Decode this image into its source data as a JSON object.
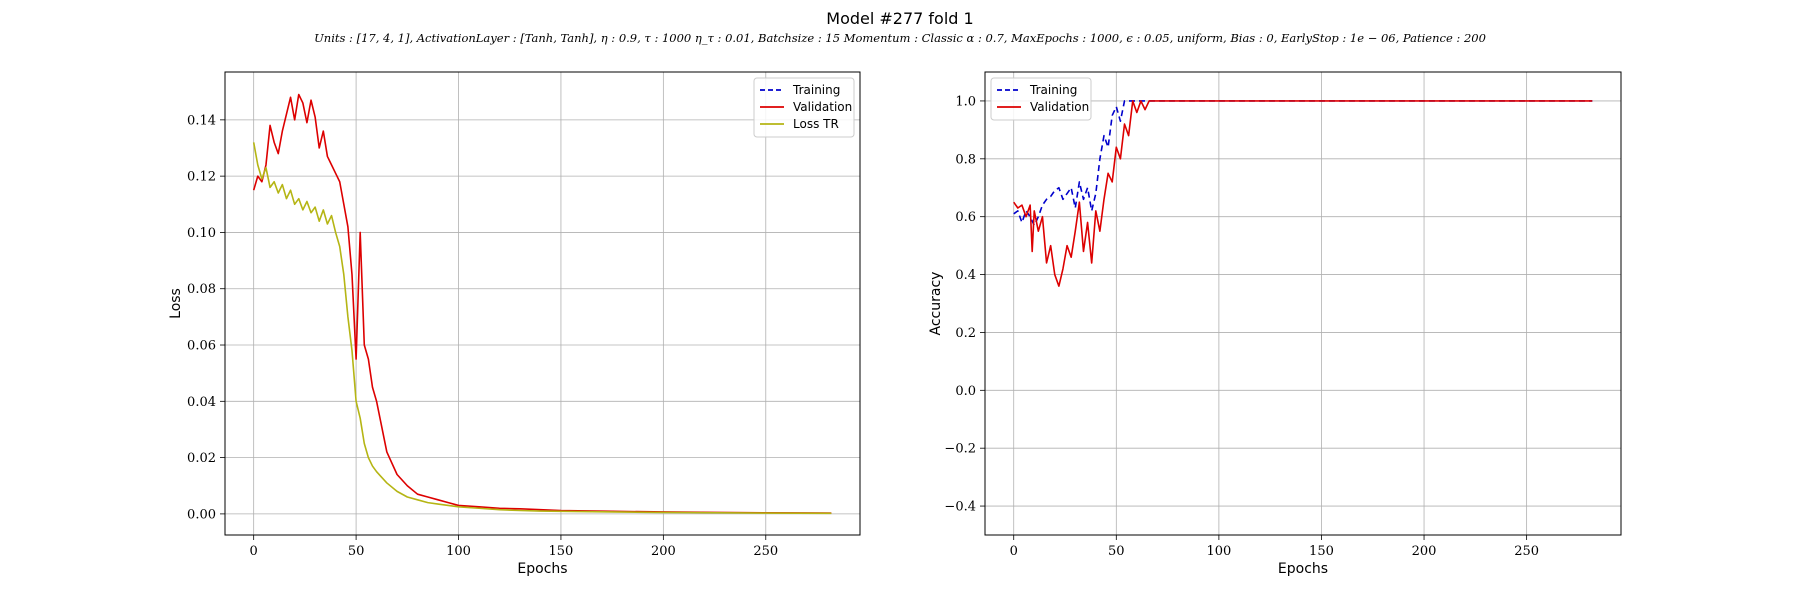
{
  "figure": {
    "title": "Model #277 fold 1",
    "subtitle": "Units : [17, 4, 1], ActivationLayer : [Tanh, Tanh], η : 0.9, τ : 1000 η_τ : 0.01, Batchsize : 15 Momentum : Classic α : 0.7, MaxEpochs : 1000, ϵ : 0.05, uniform, Bias : 0, EarlyStop : 1e − 06, Patience : 200"
  },
  "chart_data": [
    {
      "type": "line",
      "xlabel": "Epochs",
      "ylabel": "Loss",
      "xlim": [
        -14,
        296
      ],
      "ylim": [
        -0.0075,
        0.157
      ],
      "xticks": [
        0,
        50,
        100,
        150,
        200,
        250
      ],
      "yticks": [
        0.0,
        0.02,
        0.04,
        0.06,
        0.08,
        0.1,
        0.12,
        0.14
      ],
      "ytick_labels": [
        "0.00",
        "0.02",
        "0.04",
        "0.06",
        "0.08",
        "0.10",
        "0.12",
        "0.14"
      ],
      "grid": true,
      "legend_position": "top-right",
      "series": [
        {
          "name": "Training",
          "color": "#0000cc",
          "dash": "6,4",
          "x": [],
          "y": []
        },
        {
          "name": "Validation",
          "color": "#dd0000",
          "dash": "",
          "x": [
            0,
            2,
            4,
            6,
            8,
            10,
            12,
            14,
            16,
            18,
            20,
            22,
            24,
            26,
            28,
            30,
            32,
            34,
            36,
            38,
            40,
            42,
            44,
            46,
            48,
            50,
            52,
            54,
            56,
            58,
            60,
            65,
            70,
            75,
            80,
            85,
            90,
            95,
            100,
            110,
            120,
            130,
            140,
            150,
            175,
            200,
            225,
            250,
            282
          ],
          "y": [
            0.115,
            0.12,
            0.118,
            0.124,
            0.138,
            0.132,
            0.128,
            0.136,
            0.142,
            0.148,
            0.14,
            0.149,
            0.146,
            0.139,
            0.147,
            0.141,
            0.13,
            0.136,
            0.127,
            0.124,
            0.121,
            0.118,
            0.11,
            0.102,
            0.085,
            0.055,
            0.1,
            0.06,
            0.055,
            0.045,
            0.04,
            0.022,
            0.014,
            0.01,
            0.007,
            0.006,
            0.005,
            0.004,
            0.003,
            0.0025,
            0.002,
            0.0018,
            0.0015,
            0.0012,
            0.0009,
            0.0007,
            0.0005,
            0.0004,
            0.0003
          ]
        },
        {
          "name": "Loss TR",
          "color": "#b5b514",
          "dash": "",
          "x": [
            0,
            2,
            4,
            6,
            8,
            10,
            12,
            14,
            16,
            18,
            20,
            22,
            24,
            26,
            28,
            30,
            32,
            34,
            36,
            38,
            40,
            42,
            44,
            46,
            48,
            50,
            52,
            54,
            56,
            58,
            60,
            65,
            70,
            75,
            80,
            85,
            90,
            95,
            100,
            110,
            120,
            130,
            140,
            150,
            175,
            200,
            225,
            250,
            282
          ],
          "y": [
            0.132,
            0.124,
            0.119,
            0.123,
            0.116,
            0.118,
            0.114,
            0.117,
            0.112,
            0.115,
            0.11,
            0.112,
            0.108,
            0.111,
            0.107,
            0.109,
            0.104,
            0.108,
            0.103,
            0.106,
            0.1,
            0.095,
            0.085,
            0.07,
            0.058,
            0.04,
            0.034,
            0.025,
            0.02,
            0.017,
            0.015,
            0.011,
            0.008,
            0.006,
            0.005,
            0.004,
            0.0035,
            0.003,
            0.0025,
            0.002,
            0.0015,
            0.0012,
            0.001,
            0.0009,
            0.0007,
            0.0005,
            0.0004,
            0.0003,
            0.0002
          ]
        }
      ]
    },
    {
      "type": "line",
      "xlabel": "Epochs",
      "ylabel": "Accuracy",
      "xlim": [
        -14,
        296
      ],
      "ylim": [
        -0.5,
        1.1
      ],
      "xticks": [
        0,
        50,
        100,
        150,
        200,
        250
      ],
      "yticks": [
        -0.4,
        -0.2,
        0.0,
        0.2,
        0.4,
        0.6,
        0.8,
        1.0
      ],
      "ytick_labels": [
        "−0.4",
        "−0.2",
        "0.0",
        "0.2",
        "0.4",
        "0.6",
        "0.8",
        "1.0"
      ],
      "grid": true,
      "legend_position": "top-left",
      "series": [
        {
          "name": "Training",
          "color": "#0000cc",
          "dash": "6,4",
          "x": [
            0,
            2,
            4,
            6,
            8,
            10,
            12,
            14,
            16,
            18,
            20,
            22,
            24,
            26,
            28,
            30,
            32,
            34,
            36,
            38,
            40,
            42,
            44,
            46,
            48,
            50,
            52,
            54,
            56,
            58,
            60,
            70,
            100,
            150,
            200,
            250,
            282
          ],
          "y": [
            0.61,
            0.62,
            0.58,
            0.62,
            0.6,
            0.57,
            0.6,
            0.64,
            0.66,
            0.67,
            0.69,
            0.7,
            0.66,
            0.68,
            0.7,
            0.63,
            0.72,
            0.66,
            0.7,
            0.62,
            0.68,
            0.8,
            0.88,
            0.84,
            0.95,
            0.98,
            0.93,
            1.0,
            1.0,
            1.0,
            1.0,
            1.0,
            1.0,
            1.0,
            1.0,
            1.0,
            1.0
          ]
        },
        {
          "name": "Validation",
          "color": "#dd0000",
          "dash": "",
          "x": [
            0,
            2,
            4,
            6,
            8,
            9,
            10,
            12,
            14,
            16,
            18,
            20,
            22,
            24,
            26,
            28,
            30,
            32,
            34,
            36,
            38,
            40,
            42,
            44,
            46,
            48,
            50,
            52,
            54,
            56,
            58,
            60,
            62,
            64,
            66,
            70,
            100,
            150,
            200,
            250,
            282
          ],
          "y": [
            0.65,
            0.63,
            0.64,
            0.6,
            0.64,
            0.48,
            0.62,
            0.55,
            0.6,
            0.44,
            0.5,
            0.4,
            0.36,
            0.42,
            0.5,
            0.46,
            0.55,
            0.65,
            0.48,
            0.58,
            0.44,
            0.62,
            0.55,
            0.66,
            0.75,
            0.72,
            0.84,
            0.8,
            0.92,
            0.88,
            1.0,
            0.96,
            1.0,
            0.97,
            1.0,
            1.0,
            1.0,
            1.0,
            1.0,
            1.0,
            1.0
          ]
        }
      ]
    }
  ]
}
